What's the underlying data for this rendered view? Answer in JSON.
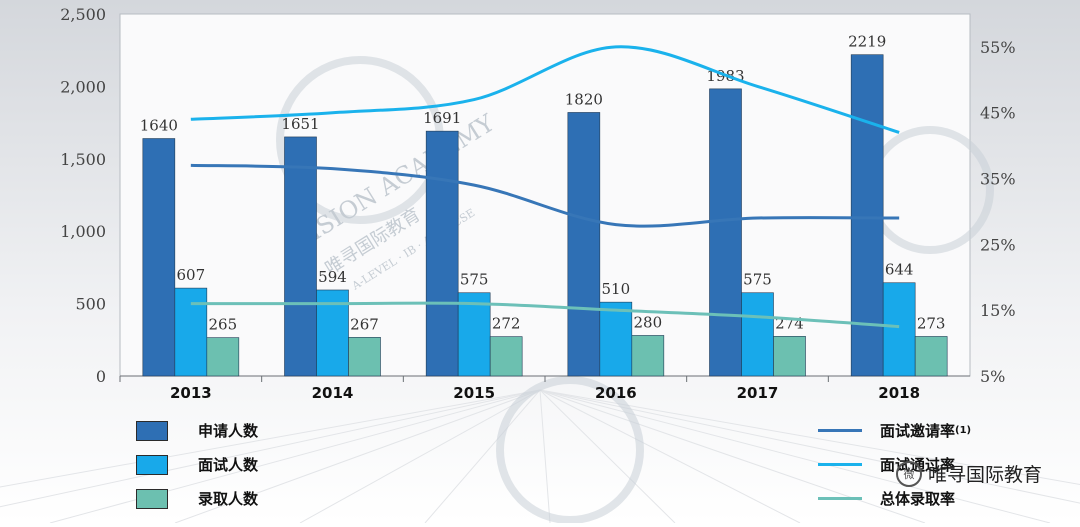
{
  "chart_data": {
    "type": "bar",
    "categories": [
      "2013",
      "2014",
      "2015",
      "2016",
      "2017",
      "2018"
    ],
    "series": [
      {
        "name": "申请人数",
        "values": [
          1640,
          1651,
          1691,
          1820,
          1983,
          2219
        ],
        "color": "#2e6fb4"
      },
      {
        "name": "面试人数",
        "values": [
          607,
          594,
          575,
          510,
          575,
          644
        ],
        "color": "#18a9ea"
      },
      {
        "name": "录取人数",
        "values": [
          265,
          267,
          272,
          280,
          274,
          273
        ],
        "color": "#6cc0b0"
      }
    ],
    "line_series": [
      {
        "name": "面试邀请率",
        "sup": "(1)",
        "values": [
          37,
          36.5,
          34,
          28,
          29,
          29
        ],
        "color": "#3776b7"
      },
      {
        "name": "面试通过率",
        "values": [
          44,
          45,
          47,
          55,
          49,
          42
        ],
        "color": "#1ab2ec"
      },
      {
        "name": "总体录取率",
        "values": [
          16,
          16,
          16,
          15,
          14,
          12.5
        ],
        "color": "#6cc0b8"
      }
    ],
    "ylim": [
      0,
      2500
    ],
    "yticks": [
      "0",
      "500",
      "1,000",
      "1,500",
      "2,000",
      "2,500"
    ],
    "y2lim": [
      5,
      60
    ],
    "y2ticks": [
      "5%",
      "15%",
      "25%",
      "35%",
      "45%",
      "55%"
    ],
    "legend_position": "bottom"
  },
  "watermark": {
    "academy": "VISION ACADEMY",
    "cn": "唯寻国际教育",
    "sub": "A-LEVEL · IB · AP · GCSE",
    "footer": "唯寻国际教育",
    "badge": "微"
  }
}
